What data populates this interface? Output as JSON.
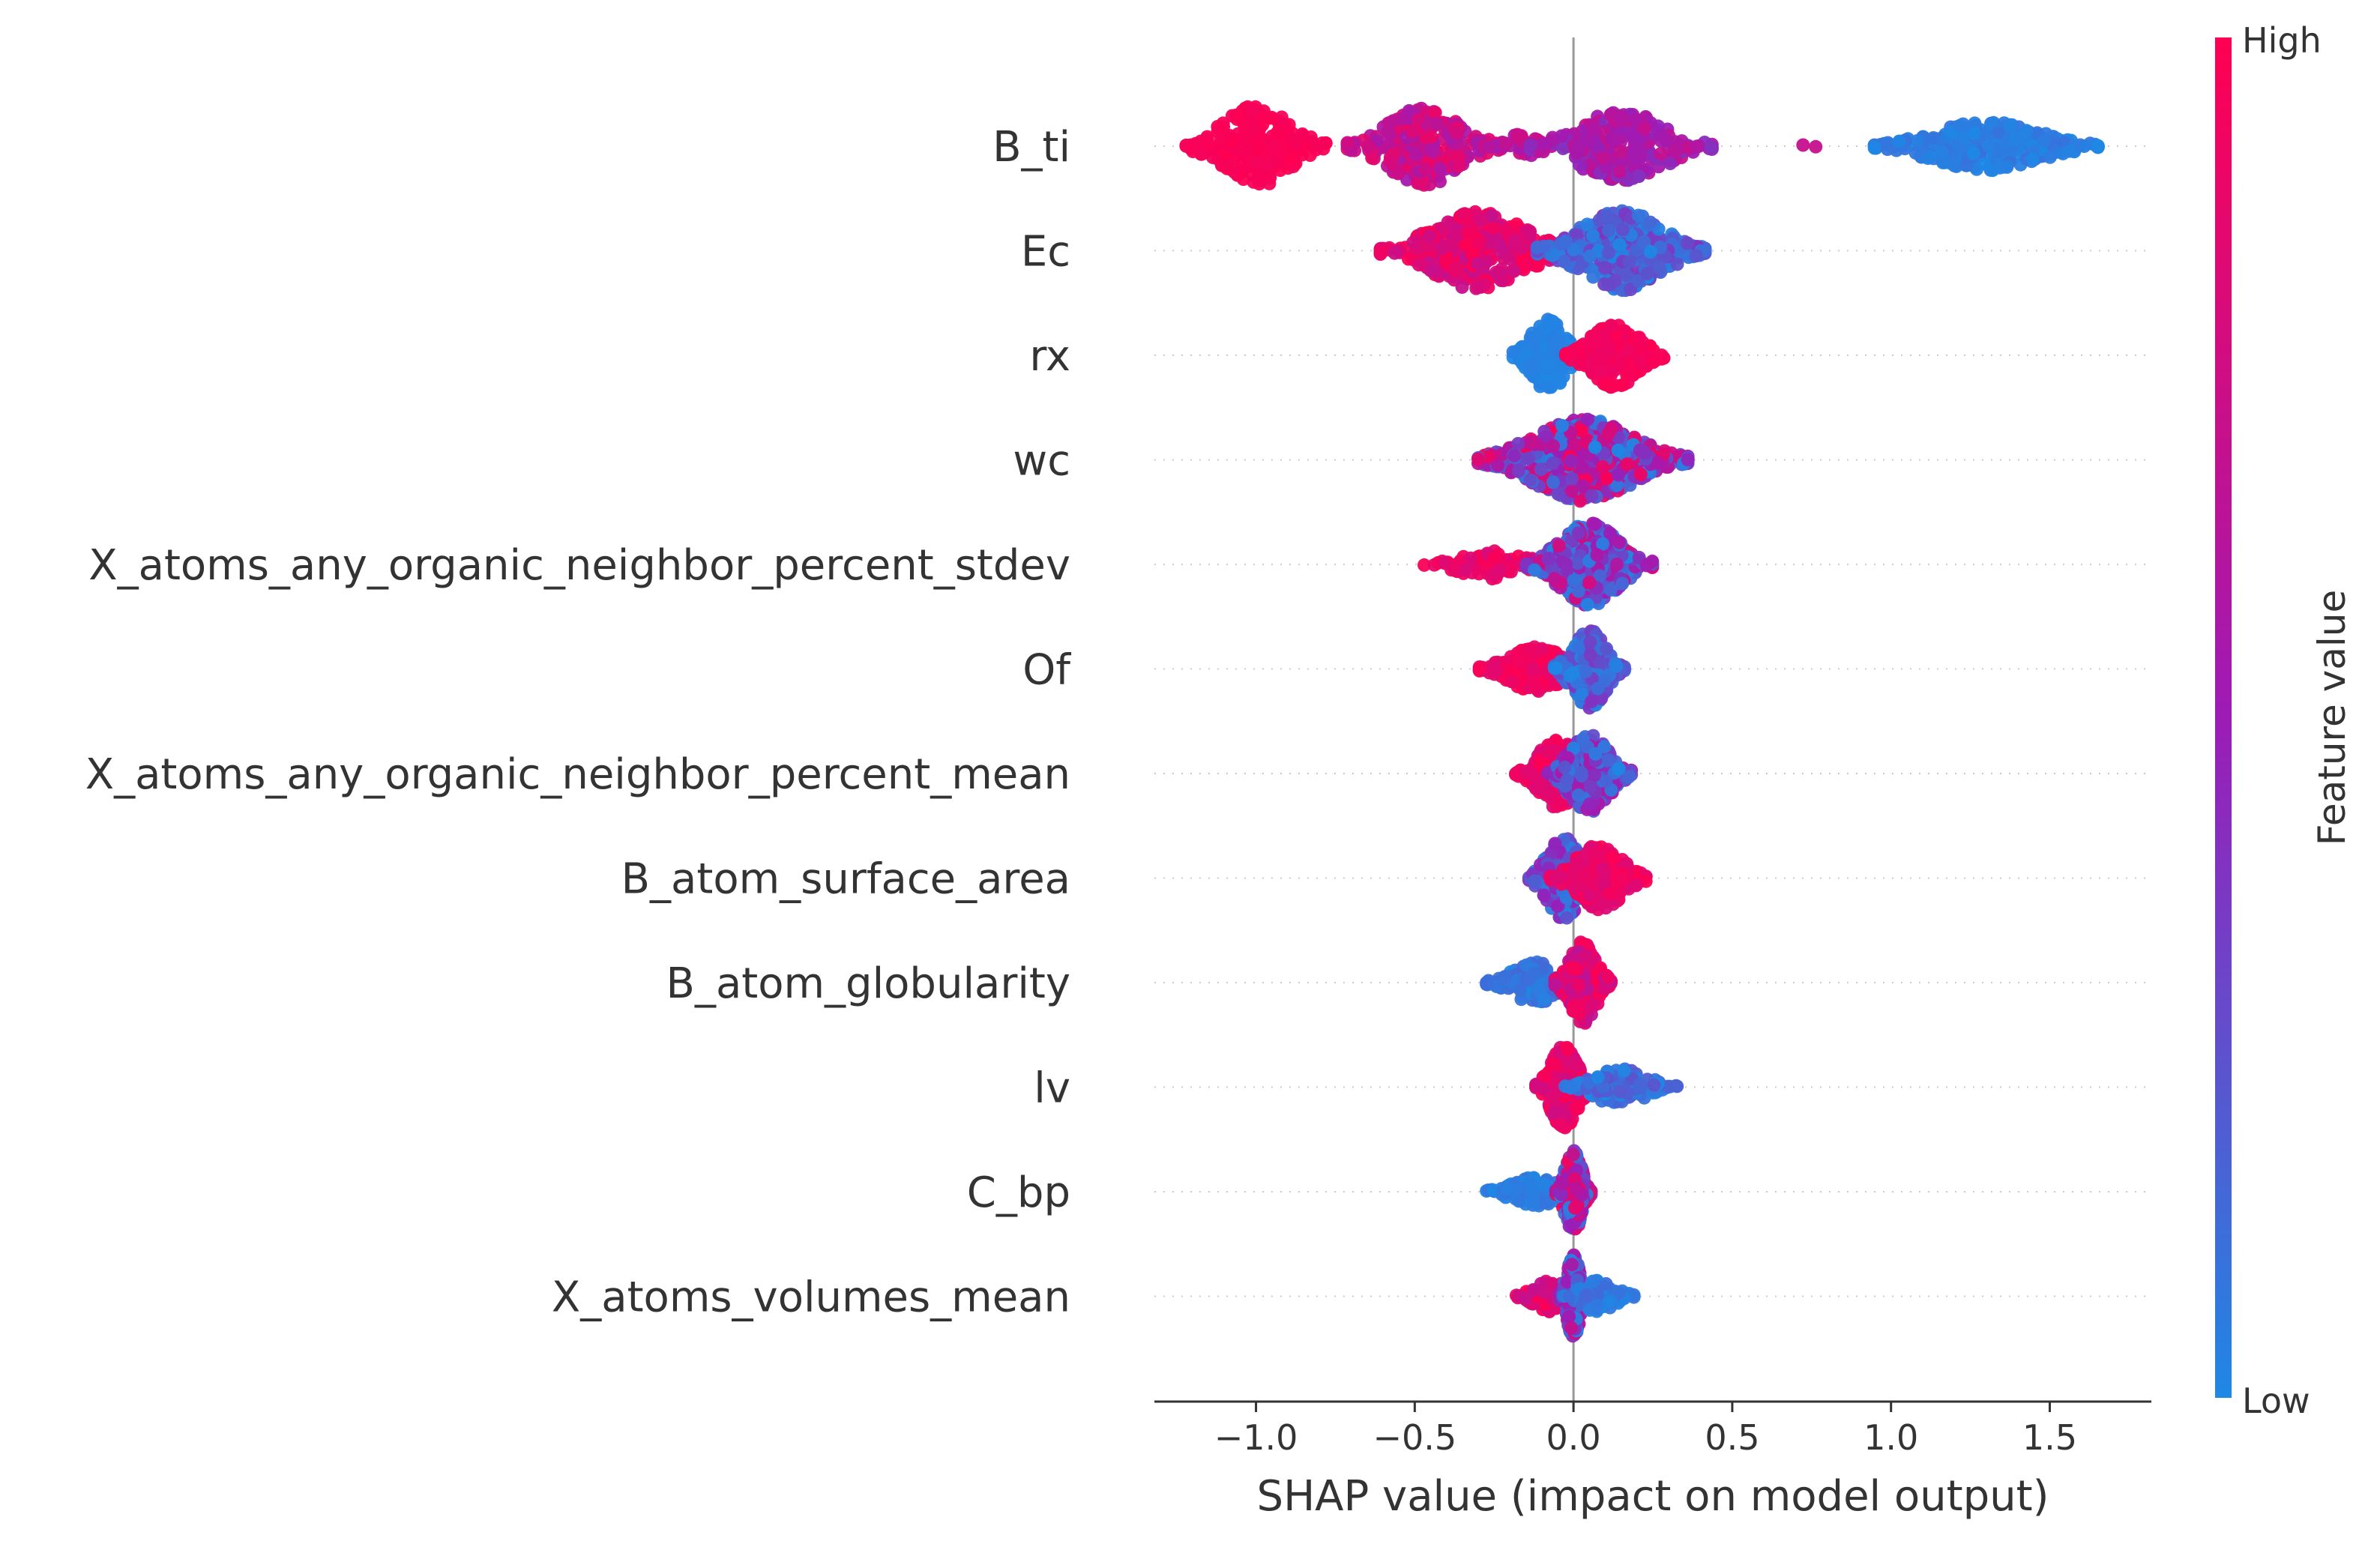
{
  "chart_data": {
    "type": "scatter",
    "subtype": "shap-beeswarm",
    "xlabel": "SHAP value (impact on model output)",
    "xlim": [
      -1.32,
      1.82
    ],
    "x_ticks": [
      -1.0,
      -0.5,
      0.0,
      0.5,
      1.0,
      1.5
    ],
    "x_tick_labels": [
      "−1.0",
      "−0.5",
      "0.0",
      "0.5",
      "1.0",
      "1.5"
    ],
    "features": [
      {
        "name": "B_ti",
        "clusters": [
          {
            "center": -1.0,
            "spread": 0.1,
            "max_height": 1.0,
            "n": 220,
            "color": [
              0.95,
              1.0
            ]
          },
          {
            "center": -0.47,
            "spread": 0.11,
            "max_height": 0.95,
            "n": 240,
            "color": [
              0.55,
              0.9
            ]
          },
          {
            "center": -0.17,
            "spread": 0.05,
            "max_height": 0.3,
            "n": 30,
            "color": [
              0.5,
              0.8
            ]
          },
          {
            "center": 0.15,
            "spread": 0.13,
            "max_height": 0.85,
            "n": 240,
            "color": [
              0.4,
              0.7
            ]
          },
          {
            "center": 0.75,
            "spread": 0.05,
            "max_height": 0.1,
            "n": 2,
            "color": [
              0.7,
              0.8
            ]
          },
          {
            "center": 1.3,
            "spread": 0.16,
            "max_height": 0.6,
            "n": 300,
            "color": [
              0.0,
              0.1
            ]
          }
        ]
      },
      {
        "name": "Ec",
        "clusters": [
          {
            "center": -0.3,
            "spread": 0.14,
            "max_height": 0.95,
            "n": 320,
            "color": [
              0.7,
              1.0
            ]
          },
          {
            "center": 0.15,
            "spread": 0.12,
            "max_height": 1.0,
            "n": 320,
            "color": [
              0.0,
              0.4
            ]
          }
        ]
      },
      {
        "name": "rx",
        "clusters": [
          {
            "center": -0.08,
            "spread": 0.05,
            "max_height": 0.9,
            "n": 190,
            "color": [
              0.0,
              0.05
            ]
          },
          {
            "center": 0.13,
            "spread": 0.07,
            "max_height": 0.8,
            "n": 190,
            "color": [
              0.9,
              1.0
            ]
          }
        ]
      },
      {
        "name": "wc",
        "clusters": [
          {
            "center": 0.03,
            "spread": 0.15,
            "max_height": 1.0,
            "n": 520,
            "color": [
              0.0,
              1.0
            ]
          }
        ]
      },
      {
        "name": "X_atoms_any_organic_neighbor_percent_stdev",
        "clusters": [
          {
            "center": -0.25,
            "spread": 0.1,
            "max_height": 0.35,
            "n": 90,
            "color": [
              0.8,
              1.0
            ]
          },
          {
            "center": 0.05,
            "spread": 0.09,
            "max_height": 1.0,
            "n": 380,
            "color": [
              0.0,
              0.8
            ]
          }
        ]
      },
      {
        "name": "Of",
        "clusters": [
          {
            "center": -0.12,
            "spread": 0.08,
            "max_height": 0.55,
            "n": 220,
            "color": [
              0.85,
              1.0
            ]
          },
          {
            "center": 0.05,
            "spread": 0.05,
            "max_height": 0.95,
            "n": 220,
            "color": [
              0.0,
              0.4
            ]
          }
        ]
      },
      {
        "name": "X_atoms_any_organic_neighbor_percent_mean",
        "clusters": [
          {
            "center": -0.05,
            "spread": 0.06,
            "max_height": 0.85,
            "n": 220,
            "color": [
              0.8,
              1.0
            ]
          },
          {
            "center": 0.05,
            "spread": 0.06,
            "max_height": 0.95,
            "n": 220,
            "color": [
              0.0,
              0.6
            ]
          }
        ]
      },
      {
        "name": "B_atom_surface_area",
        "clusters": [
          {
            "center": -0.03,
            "spread": 0.05,
            "max_height": 1.0,
            "n": 220,
            "color": [
              0.0,
              0.5
            ]
          },
          {
            "center": 0.08,
            "spread": 0.07,
            "max_height": 0.8,
            "n": 220,
            "color": [
              0.8,
              1.0
            ]
          }
        ]
      },
      {
        "name": "B_atom_globularity",
        "clusters": [
          {
            "center": -0.12,
            "spread": 0.07,
            "max_height": 0.5,
            "n": 140,
            "color": [
              0.0,
              0.15
            ]
          },
          {
            "center": 0.03,
            "spread": 0.04,
            "max_height": 1.0,
            "n": 240,
            "color": [
              0.65,
              1.0
            ]
          }
        ]
      },
      {
        "name": "lv",
        "clusters": [
          {
            "center": -0.03,
            "spread": 0.04,
            "max_height": 1.0,
            "n": 280,
            "color": [
              0.75,
              1.0
            ]
          },
          {
            "center": 0.15,
            "spread": 0.08,
            "max_height": 0.45,
            "n": 140,
            "color": [
              0.0,
              0.25
            ]
          }
        ]
      },
      {
        "name": "C_bp",
        "clusters": [
          {
            "center": -0.12,
            "spread": 0.07,
            "max_height": 0.35,
            "n": 120,
            "color": [
              0.0,
              0.1
            ]
          },
          {
            "center": 0.0,
            "spread": 0.025,
            "max_height": 1.0,
            "n": 280,
            "color": [
              0.0,
              1.0
            ]
          }
        ]
      },
      {
        "name": "X_atoms_volumes_mean",
        "clusters": [
          {
            "center": -0.07,
            "spread": 0.05,
            "max_height": 0.4,
            "n": 90,
            "color": [
              0.7,
              1.0
            ]
          },
          {
            "center": 0.0,
            "spread": 0.02,
            "max_height": 1.0,
            "n": 240,
            "color": [
              0.0,
              0.7
            ]
          },
          {
            "center": 0.08,
            "spread": 0.05,
            "max_height": 0.4,
            "n": 90,
            "color": [
              0.0,
              0.15
            ]
          }
        ]
      }
    ],
    "colorbar": {
      "title": "Feature value",
      "high_label": "High",
      "low_label": "Low",
      "high_color": "#ff0052",
      "mid_color": "#9d1bb6",
      "low_color": "#1e88e5"
    }
  }
}
